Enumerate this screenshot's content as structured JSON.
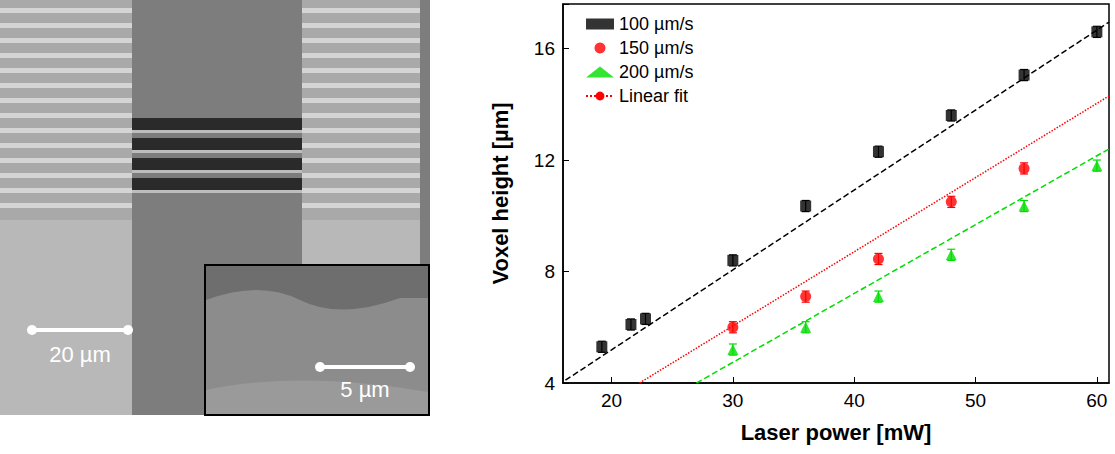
{
  "image_panel": {
    "scale_bars": [
      "20 µm",
      "5 µm"
    ]
  },
  "chart_data": {
    "type": "scatter",
    "x_label": "Laser power [mW]",
    "y_label": "Voxel height [µm]",
    "xlim": [
      16,
      61
    ],
    "xticks": [
      20,
      30,
      40,
      50,
      60
    ],
    "ylim": [
      4,
      17.6
    ],
    "yticks": [
      4,
      8,
      12,
      16
    ],
    "grid": false,
    "legend": "upper left",
    "series": [
      {
        "name": "100 µm/s",
        "color": "#000000",
        "marker": "square",
        "x": [
          19.2,
          21.6,
          22.8,
          30,
          36,
          42,
          48,
          54,
          60
        ],
        "values": [
          5.3,
          6.1,
          6.3,
          8.4,
          10.35,
          12.3,
          13.6,
          15.05,
          16.6
        ],
        "errors": [
          0.2,
          0.2,
          0.2,
          0.2,
          0.2,
          0.2,
          0.2,
          0.2,
          0.2
        ]
      },
      {
        "name": "150 µm/s",
        "color": "#ff0000",
        "marker": "circle",
        "x": [
          30,
          36,
          42,
          48,
          54
        ],
        "values": [
          6.0,
          7.1,
          8.45,
          10.5,
          11.7
        ],
        "errors": [
          0.2,
          0.2,
          0.2,
          0.2,
          0.2
        ]
      },
      {
        "name": "200 µm/s",
        "color": "#00dd00",
        "marker": "triangle",
        "x": [
          30,
          36,
          42,
          48,
          54,
          60
        ],
        "values": [
          5.2,
          6.0,
          7.1,
          8.6,
          10.35,
          11.8
        ],
        "errors": [
          0.2,
          0.2,
          0.2,
          0.2,
          0.2,
          0.2
        ]
      }
    ],
    "fits": [
      {
        "type": "line",
        "color": "#000000",
        "line_style": "dashed",
        "x": [
          16.2,
          61
        ],
        "values": [
          4.1,
          16.95
        ]
      },
      {
        "type": "line",
        "name": "Linear fit",
        "color": "#ff0000",
        "line_style": "dotted",
        "x": [
          22.3,
          61
        ],
        "values": [
          4,
          14.3
        ]
      },
      {
        "type": "line",
        "color": "#00dd00",
        "line_style": "dashed",
        "x": [
          27,
          61
        ],
        "values": [
          4,
          12.4
        ]
      }
    ]
  }
}
